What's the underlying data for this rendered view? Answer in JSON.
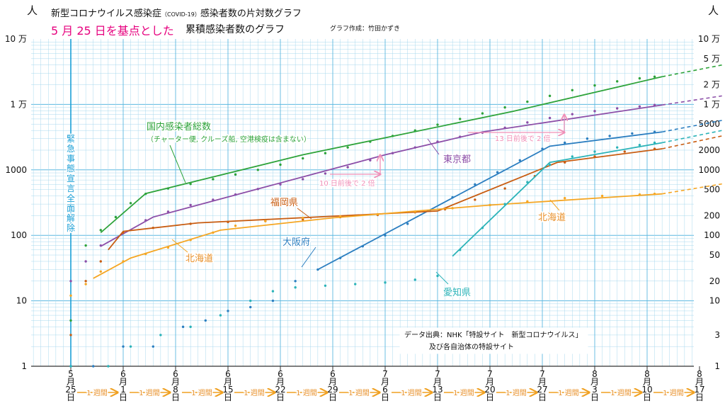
{
  "title": {
    "line1_pre": "新型コロナウイルス感染症",
    "line1_small": "（COVID-19）",
    "line1_post": "感染者数の片対数グラフ",
    "line2_highlight": "5 月 25 日を基点とした",
    "line2_rest": "累積感染者数のグラフ",
    "credit": "グラフ作成：竹田かずき"
  },
  "unit_label": "人",
  "left_ticks": [
    "10 万",
    "1 万",
    "1000",
    "100",
    "10",
    "1"
  ],
  "right_ticks": [
    "10 万",
    "5 万",
    "2 万",
    "1 万",
    "5000",
    "2000",
    "1000",
    "500",
    "200",
    "100",
    "50",
    "20",
    "10",
    "3",
    "1"
  ],
  "emergency_label": "緊急事態宣言全面解除",
  "week_label": "1 週間",
  "source": {
    "line1": "データ出典：NHK「特設サイト　新型コロナウイルス」",
    "line2": "及び各自治体の特設サイト"
  },
  "annotations": {
    "national_line1": "国内感染者総数",
    "national_line2": "（チャーター便, クルーズ船, 空港検疫は含まない）",
    "tokyo": "東京都",
    "fukuoka": "福岡県",
    "hokkaido1": "北海道",
    "hokkaido2": "北海道",
    "osaka": "大阪府",
    "aichi": "愛知県",
    "double1": "10 日前後で 2 倍",
    "double2": "13 日前後で 2 倍"
  },
  "colors": {
    "grid": "#a8d8ee",
    "grid_major": "#5cb8e0",
    "national": "#2ea33a",
    "tokyo": "#8c4fa8",
    "osaka": "#2b7ec0",
    "fukuoka": "#c85d12",
    "hokkaido": "#f5a623",
    "aichi": "#2bb3b8",
    "highlight": "#e6007e",
    "double_arrow": "#f090b8",
    "emergency": "#1a9fd6",
    "week_arrow": "#f0a020",
    "week_text": "#e8902a",
    "annotation_green": "#2ea33a",
    "annotation_orange": "#e8902a",
    "annotation_brown": "#c85d12",
    "annotation_blue": "#2b7ec0"
  },
  "chart_data": {
    "type": "line",
    "x_scale": "date",
    "y_scale": "log",
    "ylim": [
      1,
      100000
    ],
    "x_ticks": [
      {
        "month": "5",
        "day": "25"
      },
      {
        "month": "6",
        "day": "1"
      },
      {
        "month": "6",
        "day": "8"
      },
      {
        "month": "6",
        "day": "15"
      },
      {
        "month": "6",
        "day": "22"
      },
      {
        "month": "6",
        "day": "29"
      },
      {
        "month": "7",
        "day": "6"
      },
      {
        "month": "7",
        "day": "13"
      },
      {
        "month": "7",
        "day": "20"
      },
      {
        "month": "7",
        "day": "27"
      },
      {
        "month": "8",
        "day": "3"
      },
      {
        "month": "8",
        "day": "10"
      },
      {
        "month": "8",
        "day": "17"
      }
    ],
    "month_suffix": "月",
    "day_suffix": "日",
    "series": [
      {
        "name": "national",
        "trend": [
          [
            "2020-05-29",
            110
          ],
          [
            "2020-06-04",
            435
          ],
          [
            "2020-06-25",
            1700
          ],
          [
            "2020-07-23",
            7800
          ],
          [
            "2020-08-12",
            26500
          ]
        ],
        "proj": [
          [
            "2020-08-12",
            26500
          ],
          [
            "2020-08-20",
            40000
          ]
        ],
        "points": [
          [
            "2020-05-25",
            5
          ],
          [
            "2020-05-27",
            70
          ],
          [
            "2020-05-29",
            120
          ],
          [
            "2020-05-31",
            190
          ],
          [
            "2020-06-02",
            310
          ],
          [
            "2020-06-04",
            430
          ],
          [
            "2020-06-07",
            520
          ],
          [
            "2020-06-10",
            610
          ],
          [
            "2020-06-13",
            720
          ],
          [
            "2020-06-16",
            850
          ],
          [
            "2020-06-19",
            1000
          ],
          [
            "2020-06-22",
            1200
          ],
          [
            "2020-06-25",
            1500
          ],
          [
            "2020-06-28",
            1800
          ],
          [
            "2020-07-01",
            2200
          ],
          [
            "2020-07-04",
            2700
          ],
          [
            "2020-07-07",
            3300
          ],
          [
            "2020-07-10",
            4000
          ],
          [
            "2020-07-13",
            4900
          ],
          [
            "2020-07-16",
            6000
          ],
          [
            "2020-07-19",
            7300
          ],
          [
            "2020-07-22",
            9000
          ],
          [
            "2020-07-25",
            11000
          ],
          [
            "2020-07-28",
            13500
          ],
          [
            "2020-07-31",
            16500
          ],
          [
            "2020-08-03",
            19500
          ],
          [
            "2020-08-06",
            22500
          ],
          [
            "2020-08-09",
            25000
          ],
          [
            "2020-08-11",
            26500
          ]
        ]
      },
      {
        "name": "tokyo",
        "trend": [
          [
            "2020-05-29",
            68
          ],
          [
            "2020-06-05",
            190
          ],
          [
            "2020-07-06",
            1700
          ],
          [
            "2020-07-19",
            3800
          ],
          [
            "2020-08-12",
            9800
          ]
        ],
        "proj": [
          [
            "2020-08-12",
            9800
          ],
          [
            "2020-08-20",
            13500
          ]
        ],
        "points": [
          [
            "2020-05-25",
            20
          ],
          [
            "2020-05-27",
            40
          ],
          [
            "2020-05-29",
            70
          ],
          [
            "2020-06-01",
            110
          ],
          [
            "2020-06-04",
            170
          ],
          [
            "2020-06-07",
            230
          ],
          [
            "2020-06-10",
            290
          ],
          [
            "2020-06-13",
            350
          ],
          [
            "2020-06-16",
            420
          ],
          [
            "2020-06-19",
            510
          ],
          [
            "2020-06-22",
            600
          ],
          [
            "2020-06-25",
            720
          ],
          [
            "2020-06-28",
            880
          ],
          [
            "2020-07-01",
            1100
          ],
          [
            "2020-07-04",
            1400
          ],
          [
            "2020-07-07",
            1800
          ],
          [
            "2020-07-10",
            2200
          ],
          [
            "2020-07-13",
            2700
          ],
          [
            "2020-07-16",
            3200
          ],
          [
            "2020-07-19",
            3700
          ],
          [
            "2020-07-22",
            4400
          ],
          [
            "2020-07-25",
            5300
          ],
          [
            "2020-07-28",
            6200
          ],
          [
            "2020-07-31",
            7100
          ],
          [
            "2020-08-03",
            7900
          ],
          [
            "2020-08-06",
            8700
          ],
          [
            "2020-08-09",
            9300
          ],
          [
            "2020-08-11",
            9800
          ]
        ]
      },
      {
        "name": "osaka",
        "trend": [
          [
            "2020-06-27",
            30
          ],
          [
            "2020-07-28",
            2300
          ],
          [
            "2020-08-12",
            3800
          ]
        ],
        "proj": [
          [
            "2020-08-12",
            3800
          ],
          [
            "2020-08-20",
            5700
          ]
        ],
        "points": [
          [
            "2020-05-25",
            1
          ],
          [
            "2020-05-28",
            1
          ],
          [
            "2020-06-01",
            2
          ],
          [
            "2020-06-05",
            2
          ],
          [
            "2020-06-09",
            4
          ],
          [
            "2020-06-12",
            5
          ],
          [
            "2020-06-15",
            7
          ],
          [
            "2020-06-18",
            8
          ],
          [
            "2020-06-21",
            10
          ],
          [
            "2020-06-24",
            20
          ],
          [
            "2020-06-27",
            30
          ],
          [
            "2020-06-30",
            45
          ],
          [
            "2020-07-03",
            68
          ],
          [
            "2020-07-06",
            100
          ],
          [
            "2020-07-09",
            150
          ],
          [
            "2020-07-12",
            240
          ],
          [
            "2020-07-15",
            380
          ],
          [
            "2020-07-18",
            600
          ],
          [
            "2020-07-21",
            920
          ],
          [
            "2020-07-24",
            1400
          ],
          [
            "2020-07-27",
            2100
          ],
          [
            "2020-07-30",
            2600
          ],
          [
            "2020-08-02",
            3000
          ],
          [
            "2020-08-05",
            3300
          ],
          [
            "2020-08-08",
            3600
          ],
          [
            "2020-08-11",
            3800
          ]
        ]
      },
      {
        "name": "fukuoka",
        "trend": [
          [
            "2020-05-30",
            60
          ],
          [
            "2020-06-01",
            115
          ],
          [
            "2020-06-11",
            155
          ],
          [
            "2020-07-13",
            235
          ],
          [
            "2020-07-29",
            1300
          ],
          [
            "2020-08-12",
            2100
          ]
        ],
        "proj": [
          [
            "2020-08-12",
            2100
          ],
          [
            "2020-08-20",
            3300
          ]
        ],
        "points": [
          [
            "2020-05-25",
            3
          ],
          [
            "2020-05-27",
            20
          ],
          [
            "2020-05-29",
            40
          ],
          [
            "2020-06-01",
            110
          ],
          [
            "2020-06-05",
            130
          ],
          [
            "2020-06-10",
            150
          ],
          [
            "2020-06-15",
            160
          ],
          [
            "2020-06-20",
            165
          ],
          [
            "2020-06-25",
            175
          ],
          [
            "2020-06-30",
            190
          ],
          [
            "2020-07-05",
            205
          ],
          [
            "2020-07-10",
            225
          ],
          [
            "2020-07-14",
            250
          ],
          [
            "2020-07-18",
            350
          ],
          [
            "2020-07-22",
            520
          ],
          [
            "2020-07-26",
            800
          ],
          [
            "2020-07-30",
            1300
          ],
          [
            "2020-08-03",
            1600
          ],
          [
            "2020-08-07",
            1900
          ],
          [
            "2020-08-11",
            2100
          ]
        ]
      },
      {
        "name": "hokkaido",
        "trend": [
          [
            "2020-05-28",
            22
          ],
          [
            "2020-06-02",
            45
          ],
          [
            "2020-06-14",
            120
          ],
          [
            "2020-06-29",
            185
          ],
          [
            "2020-07-20",
            290
          ],
          [
            "2020-08-12",
            430
          ]
        ],
        "proj": [
          [
            "2020-08-12",
            430
          ],
          [
            "2020-08-20",
            610
          ]
        ],
        "points": [
          [
            "2020-05-25",
            12
          ],
          [
            "2020-05-27",
            18
          ],
          [
            "2020-05-29",
            28
          ],
          [
            "2020-06-01",
            40
          ],
          [
            "2020-06-04",
            52
          ],
          [
            "2020-06-07",
            65
          ],
          [
            "2020-06-10",
            85
          ],
          [
            "2020-06-13",
            110
          ],
          [
            "2020-06-16",
            140
          ],
          [
            "2020-06-20",
            165
          ],
          [
            "2020-06-25",
            185
          ],
          [
            "2020-06-30",
            195
          ],
          [
            "2020-07-05",
            210
          ],
          [
            "2020-07-10",
            230
          ],
          [
            "2020-07-15",
            260
          ],
          [
            "2020-07-20",
            290
          ],
          [
            "2020-07-25",
            330
          ],
          [
            "2020-07-30",
            370
          ],
          [
            "2020-08-04",
            400
          ],
          [
            "2020-08-09",
            420
          ],
          [
            "2020-08-11",
            430
          ]
        ]
      },
      {
        "name": "aichi",
        "trend": [
          [
            "2020-07-15",
            48
          ],
          [
            "2020-07-28",
            1300
          ],
          [
            "2020-08-12",
            2600
          ]
        ],
        "proj": [
          [
            "2020-08-12",
            2600
          ],
          [
            "2020-08-20",
            4000
          ]
        ],
        "points": [
          [
            "2020-05-25",
            1
          ],
          [
            "2020-05-30",
            1
          ],
          [
            "2020-06-02",
            2
          ],
          [
            "2020-06-06",
            3
          ],
          [
            "2020-06-10",
            4
          ],
          [
            "2020-06-14",
            6
          ],
          [
            "2020-06-18",
            10
          ],
          [
            "2020-06-21",
            14
          ],
          [
            "2020-06-24",
            16
          ],
          [
            "2020-06-28",
            17
          ],
          [
            "2020-07-02",
            18
          ],
          [
            "2020-07-06",
            19
          ],
          [
            "2020-07-10",
            21
          ],
          [
            "2020-07-13",
            24
          ],
          [
            "2020-07-16",
            60
          ],
          [
            "2020-07-19",
            130
          ],
          [
            "2020-07-22",
            300
          ],
          [
            "2020-07-25",
            650
          ],
          [
            "2020-07-28",
            1200
          ],
          [
            "2020-07-31",
            1600
          ],
          [
            "2020-08-03",
            1900
          ],
          [
            "2020-08-06",
            2200
          ],
          [
            "2020-08-09",
            2400
          ],
          [
            "2020-08-11",
            2600
          ]
        ]
      }
    ]
  }
}
